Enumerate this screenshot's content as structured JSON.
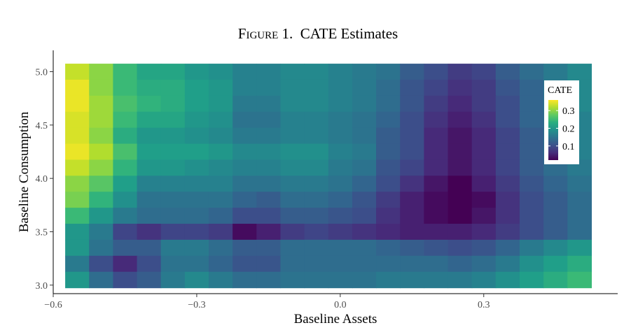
{
  "chart_data": {
    "type": "heatmap",
    "title": "Figure 1.  CATE Estimates",
    "title_prefix": "F",
    "title_smallcaps": "IGURE",
    "title_rest": " 1.  CATE Estimates",
    "xlabel": "Baseline Assets",
    "ylabel": "Baseline Consumption",
    "xlim": [
      -0.6,
      0.58
    ],
    "ylim": [
      2.92,
      5.2
    ],
    "x_ticks": [
      -0.6,
      -0.3,
      0.0,
      0.3
    ],
    "x_tick_labels": [
      "−0.6",
      "−0.3",
      "0.0",
      "0.3"
    ],
    "y_ticks": [
      3.0,
      3.5,
      4.0,
      4.5,
      5.0
    ],
    "y_tick_labels": [
      "3.0",
      "3.5",
      "4.0",
      "4.5",
      "5.0"
    ],
    "x_centers": [
      -0.55,
      -0.5,
      -0.45,
      -0.4,
      -0.35,
      -0.3,
      -0.25,
      -0.2,
      -0.15,
      -0.1,
      -0.05,
      0.0,
      0.05,
      0.1,
      0.15,
      0.2,
      0.25,
      0.3,
      0.35,
      0.4,
      0.45,
      0.5
    ],
    "y_centers": [
      5.0,
      4.85,
      4.7,
      4.55,
      4.4,
      4.25,
      4.1,
      3.95,
      3.8,
      3.65,
      3.5,
      3.35,
      3.2,
      3.05
    ],
    "values": [
      [
        0.33,
        0.3,
        0.25,
        0.22,
        0.22,
        0.2,
        0.19,
        0.17,
        0.17,
        0.18,
        0.18,
        0.17,
        0.16,
        0.15,
        0.12,
        0.1,
        0.08,
        0.09,
        0.12,
        0.14,
        0.16,
        0.18
      ],
      [
        0.35,
        0.3,
        0.25,
        0.23,
        0.23,
        0.21,
        0.2,
        0.17,
        0.17,
        0.18,
        0.18,
        0.17,
        0.16,
        0.14,
        0.11,
        0.09,
        0.07,
        0.08,
        0.11,
        0.13,
        0.16,
        0.18
      ],
      [
        0.35,
        0.31,
        0.26,
        0.24,
        0.23,
        0.21,
        0.2,
        0.16,
        0.16,
        0.18,
        0.18,
        0.17,
        0.16,
        0.14,
        0.11,
        0.08,
        0.06,
        0.08,
        0.1,
        0.13,
        0.16,
        0.18
      ],
      [
        0.34,
        0.31,
        0.25,
        0.22,
        0.22,
        0.2,
        0.19,
        0.15,
        0.15,
        0.17,
        0.17,
        0.16,
        0.15,
        0.13,
        0.1,
        0.07,
        0.05,
        0.07,
        0.1,
        0.13,
        0.15,
        0.17
      ],
      [
        0.34,
        0.3,
        0.23,
        0.2,
        0.2,
        0.19,
        0.18,
        0.16,
        0.16,
        0.17,
        0.17,
        0.16,
        0.15,
        0.12,
        0.1,
        0.06,
        0.04,
        0.06,
        0.09,
        0.12,
        0.15,
        0.17
      ],
      [
        0.35,
        0.32,
        0.26,
        0.21,
        0.21,
        0.21,
        0.2,
        0.18,
        0.18,
        0.19,
        0.19,
        0.17,
        0.16,
        0.12,
        0.1,
        0.06,
        0.04,
        0.06,
        0.09,
        0.12,
        0.15,
        0.17
      ],
      [
        0.33,
        0.3,
        0.24,
        0.2,
        0.2,
        0.19,
        0.18,
        0.17,
        0.17,
        0.18,
        0.18,
        0.16,
        0.15,
        0.11,
        0.09,
        0.06,
        0.04,
        0.06,
        0.09,
        0.12,
        0.14,
        0.16
      ],
      [
        0.3,
        0.27,
        0.21,
        0.17,
        0.17,
        0.17,
        0.17,
        0.15,
        0.15,
        0.16,
        0.16,
        0.15,
        0.13,
        0.1,
        0.07,
        0.04,
        0.02,
        0.05,
        0.08,
        0.11,
        0.13,
        0.15
      ],
      [
        0.29,
        0.24,
        0.19,
        0.15,
        0.15,
        0.15,
        0.15,
        0.13,
        0.12,
        0.14,
        0.14,
        0.13,
        0.11,
        0.08,
        0.05,
        0.03,
        0.01,
        0.03,
        0.07,
        0.1,
        0.12,
        0.14
      ],
      [
        0.25,
        0.2,
        0.16,
        0.14,
        0.14,
        0.14,
        0.13,
        0.1,
        0.1,
        0.12,
        0.12,
        0.11,
        0.1,
        0.07,
        0.05,
        0.03,
        0.02,
        0.04,
        0.07,
        0.1,
        0.12,
        0.14
      ],
      [
        0.2,
        0.16,
        0.09,
        0.07,
        0.09,
        0.09,
        0.08,
        0.03,
        0.05,
        0.08,
        0.09,
        0.08,
        0.07,
        0.06,
        0.05,
        0.05,
        0.05,
        0.06,
        0.08,
        0.1,
        0.12,
        0.14
      ],
      [
        0.2,
        0.15,
        0.12,
        0.12,
        0.16,
        0.16,
        0.14,
        0.12,
        0.12,
        0.14,
        0.14,
        0.14,
        0.14,
        0.13,
        0.12,
        0.11,
        0.1,
        0.11,
        0.13,
        0.16,
        0.18,
        0.2
      ],
      [
        0.16,
        0.1,
        0.06,
        0.1,
        0.15,
        0.15,
        0.13,
        0.11,
        0.11,
        0.14,
        0.14,
        0.14,
        0.14,
        0.14,
        0.14,
        0.14,
        0.13,
        0.14,
        0.16,
        0.19,
        0.21,
        0.23
      ],
      [
        0.2,
        0.14,
        0.1,
        0.12,
        0.16,
        0.18,
        0.16,
        0.14,
        0.14,
        0.15,
        0.15,
        0.15,
        0.15,
        0.16,
        0.16,
        0.16,
        0.16,
        0.17,
        0.19,
        0.21,
        0.23,
        0.25
      ]
    ],
    "color_scale": "viridis",
    "legend": {
      "title": "CATE",
      "placement": "right-inside",
      "ticks": [
        0.1,
        0.2,
        0.3
      ],
      "tick_labels": [
        "0.1",
        "0.2",
        "0.3"
      ],
      "range": [
        0.02,
        0.36
      ]
    },
    "grid": false
  }
}
